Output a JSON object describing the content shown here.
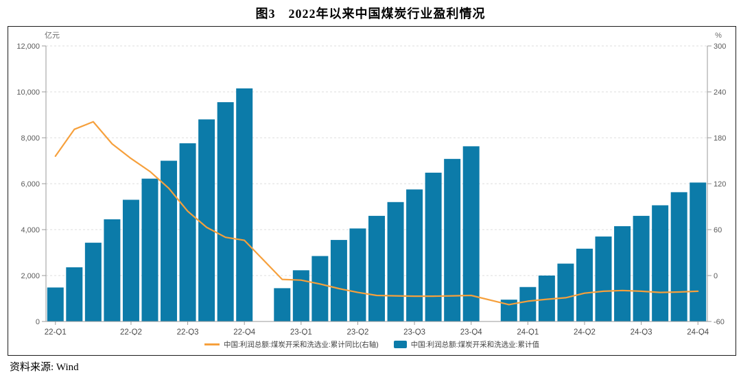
{
  "title": "图3　2022年以来中国煤炭行业盈利情况",
  "source": "资料来源: Wind",
  "legend": {
    "line_label": "中国:利润总额:煤炭开采和洗选业:累计同比(右轴)",
    "bar_label": "中国:利润总额:煤炭开采和洗选业:累计值"
  },
  "colors": {
    "bar": "#0C7BA9",
    "line": "#F6A03C",
    "grid": "#dedede",
    "axis": "#9a9a9a",
    "tick_text": "#595959",
    "frame_border": "#1a1a1a"
  },
  "chart_data": {
    "type": "bar+line",
    "title": "图3 2022年以来中国煤炭行业盈利情况",
    "y_left": {
      "unit": "亿元",
      "min": 0,
      "max": 12000,
      "step": 2000,
      "tick_labels": [
        "0",
        "2,000",
        "4,000",
        "6,000",
        "8,000",
        "10,000",
        "12,000"
      ]
    },
    "y_right": {
      "unit": "%",
      "min": -60,
      "max": 300,
      "step": 60,
      "tick_labels": [
        "-60",
        "0",
        "60",
        "120",
        "180",
        "240",
        "300"
      ]
    },
    "x_tick_labels": [
      "22-Q1",
      "22-Q2",
      "22-Q3",
      "22-Q4",
      "23-Q1",
      "23-Q2",
      "23-Q3",
      "23-Q4",
      "24-Q1",
      "24-Q2",
      "24-Q3",
      "24-Q4"
    ],
    "x_tick_slots": [
      0,
      4,
      7,
      10,
      13,
      16,
      19,
      22,
      25,
      28,
      31,
      34
    ],
    "slots_total": 35,
    "gap_slots": [
      11,
      23
    ],
    "categories": [
      "2022-02",
      "2022-03",
      "2022-04",
      "2022-05",
      "2022-06",
      "2022-07",
      "2022-08",
      "2022-09",
      "2022-10",
      "2022-11",
      "2022-12",
      "2023-02",
      "2023-03",
      "2023-04",
      "2023-05",
      "2023-06",
      "2023-07",
      "2023-08",
      "2023-09",
      "2023-10",
      "2023-11",
      "2023-12",
      "2024-02",
      "2024-03",
      "2024-04",
      "2024-05",
      "2024-06",
      "2024-07",
      "2024-08",
      "2024-09",
      "2024-10",
      "2024-11",
      "2024-12"
    ],
    "series": [
      {
        "name": "中国:利润总额:煤炭开采和洗选业:累计值",
        "type": "bar",
        "axis": "left",
        "unit": "亿元",
        "color": "#0C7BA9",
        "values": [
          1480,
          2360,
          3430,
          4450,
          5300,
          6220,
          7000,
          7760,
          8800,
          9550,
          10150,
          1450,
          2230,
          2850,
          3550,
          4050,
          4600,
          5200,
          5750,
          6480,
          7080,
          7630,
          950,
          1500,
          2000,
          2520,
          3170,
          3700,
          4150,
          4600,
          5060,
          5630,
          6050
        ]
      },
      {
        "name": "中国:利润总额:煤炭开采和洗选业:累计同比(右轴)",
        "type": "line",
        "axis": "right",
        "unit": "%",
        "color": "#F6A03C",
        "values": [
          156,
          191,
          201,
          172,
          153,
          136,
          114,
          84,
          63,
          50,
          46,
          -5,
          -6,
          -11,
          -17,
          -22,
          -26,
          -26.5,
          -27,
          -27,
          -26.5,
          -26,
          -38,
          -33.5,
          -31,
          -29,
          -23,
          -20.5,
          -19.5,
          -20.5,
          -22,
          -21.5,
          -20.5
        ]
      }
    ]
  }
}
